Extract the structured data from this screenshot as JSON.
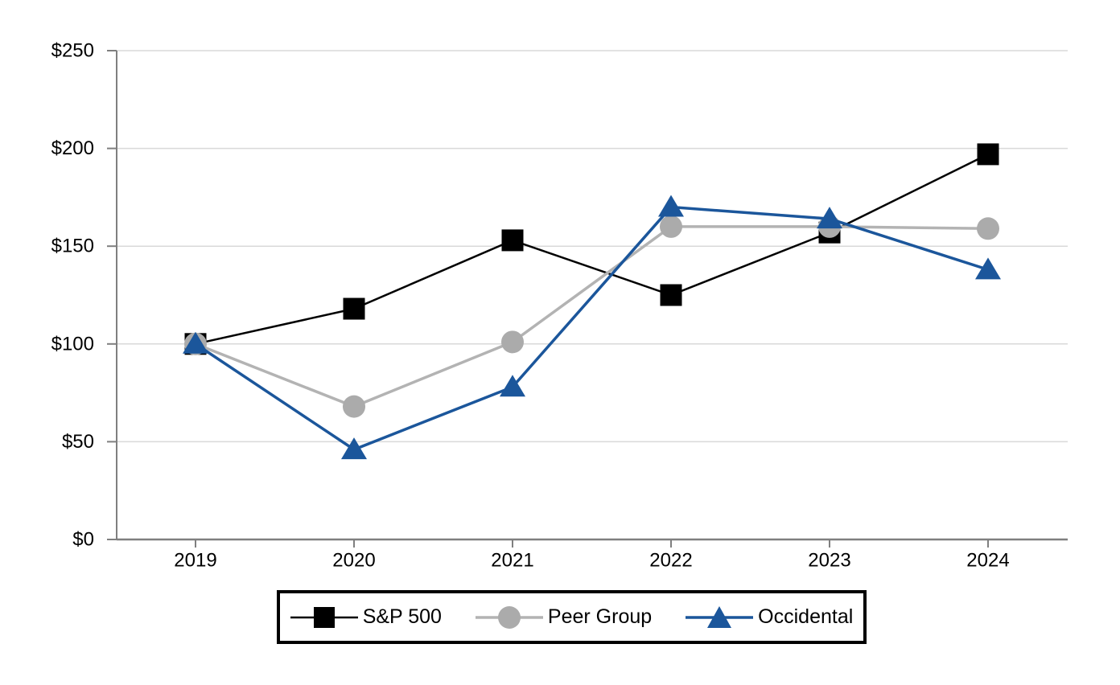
{
  "chart_data": {
    "type": "line",
    "title": "",
    "xlabel": "",
    "ylabel": "",
    "categories": [
      "2019",
      "2020",
      "2021",
      "2022",
      "2023",
      "2024"
    ],
    "series": [
      {
        "name": "S&P 500",
        "marker": "square",
        "color": "#000000",
        "line_color": "#000000",
        "line_width": 2.5,
        "values": [
          100,
          118,
          153,
          125,
          157,
          197
        ]
      },
      {
        "name": "Peer Group",
        "marker": "circle",
        "color": "#ABABAB",
        "line_color": "#B3B3B3",
        "line_width": 3.5,
        "values": [
          100,
          68,
          101,
          160,
          160,
          159
        ]
      },
      {
        "name": "Occidental",
        "marker": "triangle",
        "color": "#1B569B",
        "line_color": "#1B569B",
        "line_width": 3.5,
        "values": [
          100,
          46,
          78,
          170,
          164,
          138
        ]
      }
    ],
    "y_ticks": [
      {
        "value": 0,
        "label": "$0"
      },
      {
        "value": 50,
        "label": "$50"
      },
      {
        "value": 100,
        "label": "$100"
      },
      {
        "value": 150,
        "label": "$150"
      },
      {
        "value": 200,
        "label": "$200"
      },
      {
        "value": 250,
        "label": "$250"
      }
    ],
    "ylim": [
      0,
      250
    ],
    "grid": true,
    "legend_position": "bottom-boxed",
    "colors": {
      "gridline": "#D9D9D9",
      "axis": "#7F7F7F",
      "background": "#FFFFFF",
      "text": "#000000"
    }
  }
}
